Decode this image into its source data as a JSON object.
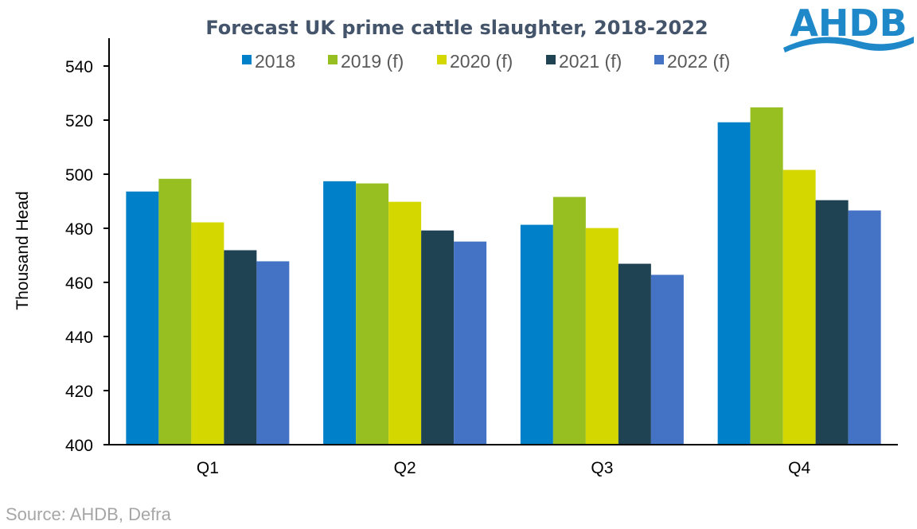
{
  "logo": {
    "text": "AHDB",
    "color": "#1e88c9"
  },
  "source": "Source: AHDB, Defra",
  "chart_data": {
    "type": "bar",
    "title": "Forecast UK prime cattle slaughter, 2018-2022",
    "xlabel": "",
    "ylabel": "Thousand Head",
    "ylim": [
      400,
      540
    ],
    "yticks": [
      400,
      420,
      440,
      460,
      480,
      500,
      520,
      540
    ],
    "grid": false,
    "legend_position": "top",
    "categories": [
      "Q1",
      "Q2",
      "Q3",
      "Q4"
    ],
    "series": [
      {
        "name": "2018",
        "color": "#0080c8",
        "values": [
          493.6,
          497.4,
          481.3,
          519.2
        ]
      },
      {
        "name": "2019 (f)",
        "color": "#97bf22",
        "values": [
          498.3,
          496.6,
          491.6,
          524.7
        ]
      },
      {
        "name": "2020 (f)",
        "color": "#d4d800",
        "values": [
          482.2,
          489.8,
          480.1,
          501.6
        ]
      },
      {
        "name": "2021 (f)",
        "color": "#1f4352",
        "values": [
          471.9,
          479.2,
          466.9,
          490.4
        ]
      },
      {
        "name": "2022 (f)",
        "color": "#4472c4",
        "values": [
          467.8,
          475.1,
          462.8,
          486.6
        ]
      }
    ]
  }
}
